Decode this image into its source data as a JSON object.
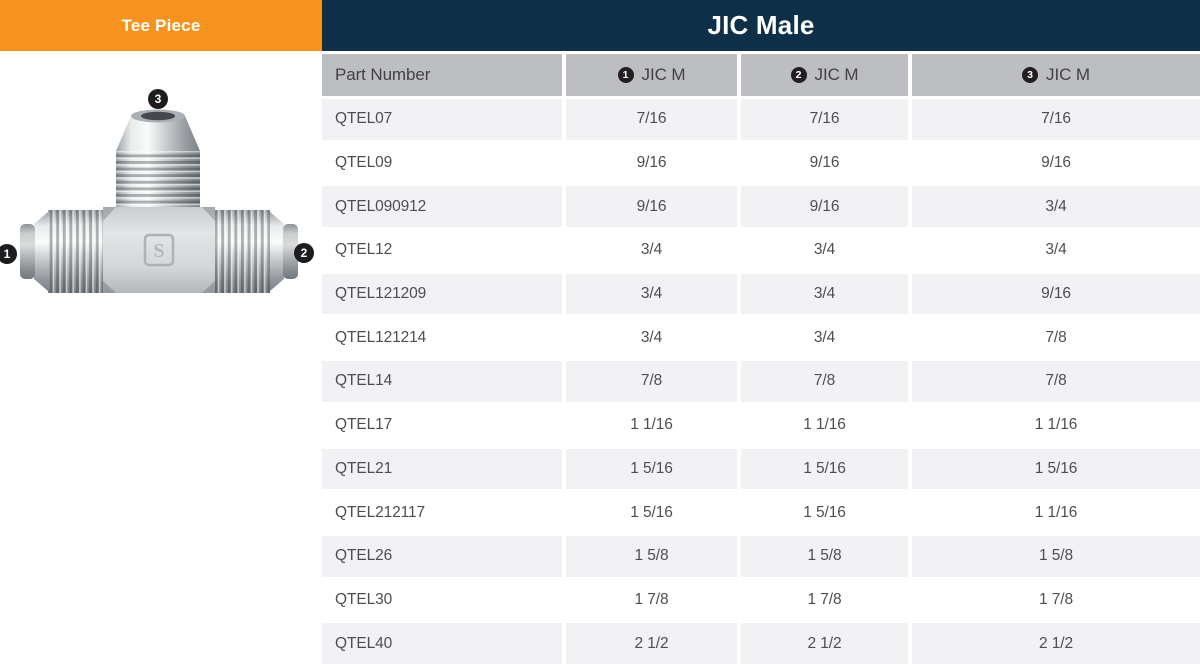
{
  "left_panel": {
    "title": "Tee Piece"
  },
  "header": {
    "title": "JIC Male"
  },
  "diagram": {
    "description": "tee-piece-fitting-photo",
    "callouts": [
      "1",
      "2",
      "3"
    ]
  },
  "table": {
    "columns": [
      {
        "badge": "",
        "label": "Part Number"
      },
      {
        "badge": "1",
        "label": "JIC M"
      },
      {
        "badge": "2",
        "label": "JIC M"
      },
      {
        "badge": "3",
        "label": "JIC M"
      }
    ],
    "rows": [
      [
        "QTEL07",
        "7/16",
        "7/16",
        "7/16"
      ],
      [
        "QTEL09",
        "9/16",
        "9/16",
        "9/16"
      ],
      [
        "QTEL090912",
        "9/16",
        "9/16",
        "3/4"
      ],
      [
        "QTEL12",
        "3/4",
        "3/4",
        "3/4"
      ],
      [
        "QTEL121209",
        "3/4",
        "3/4",
        "9/16"
      ],
      [
        "QTEL121214",
        "3/4",
        "3/4",
        "7/8"
      ],
      [
        "QTEL14",
        "7/8",
        "7/8",
        "7/8"
      ],
      [
        "QTEL17",
        "1 1/16",
        "1 1/16",
        "1 1/16"
      ],
      [
        "QTEL21",
        "1 5/16",
        "1 5/16",
        "1 5/16"
      ],
      [
        "QTEL212117",
        "1 5/16",
        "1 5/16",
        "1 1/16"
      ],
      [
        "QTEL26",
        "1 5/8",
        "1 5/8",
        "1 5/8"
      ],
      [
        "QTEL30",
        "1 7/8",
        "1 7/8",
        "1 7/8"
      ],
      [
        "QTEL40",
        "2 1/2",
        "2 1/2",
        "2 1/2"
      ]
    ]
  },
  "colors": {
    "accent_orange": "#f6921e",
    "header_navy": "#0d3048",
    "column_header_gray": "#bdbec1",
    "row_alt_gray": "#f2f2f4",
    "badge_black": "#231f20",
    "text_gray": "#4e4e50"
  }
}
